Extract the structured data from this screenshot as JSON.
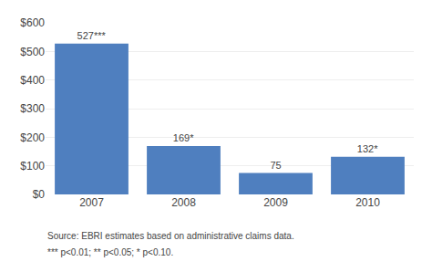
{
  "chart_data": {
    "type": "bar",
    "categories": [
      "2007",
      "2008",
      "2009",
      "2010"
    ],
    "values": [
      527,
      169,
      75,
      132
    ],
    "value_labels": [
      "527***",
      "169*",
      "75",
      "132*"
    ],
    "data_labels": true,
    "color": "#4f7fbf",
    "ylim": [
      0,
      600
    ],
    "yticks": [
      {
        "value": 0,
        "label": "$0"
      },
      {
        "value": 100,
        "label": "$100"
      },
      {
        "value": 200,
        "label": "$200"
      },
      {
        "value": 300,
        "label": "$300"
      },
      {
        "value": 400,
        "label": "$400"
      },
      {
        "value": 500,
        "label": "$500"
      },
      {
        "value": 600,
        "label": "$600"
      }
    ],
    "grid": true,
    "annotations": [
      "Source: EBRI estimates based on administrative claims data.",
      "*** p<0.01; ** p<0.05; * p<0.10."
    ]
  }
}
